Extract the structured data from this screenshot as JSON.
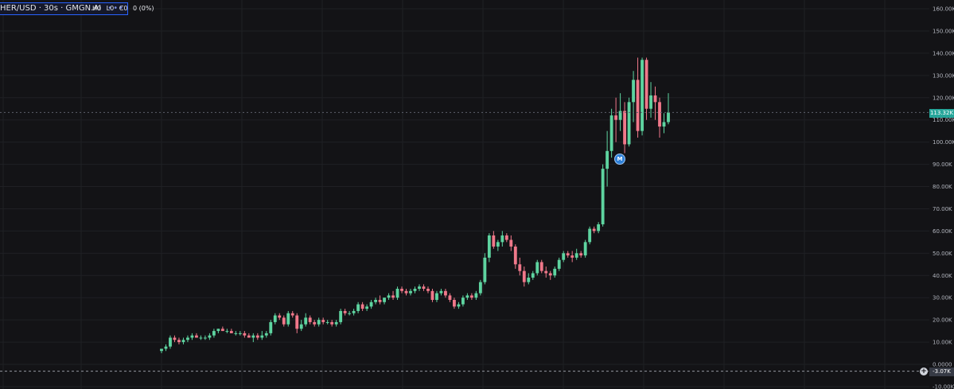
{
  "symbol": {
    "title": "HER/USD · 30s · GMGN.AI",
    "menu_icon": "more-dots-icon"
  },
  "ohlc": {
    "h": "H0",
    "l": "L0",
    "c": "C0",
    "change": "0 (0%)"
  },
  "last_price_label": "113.32K",
  "crosshair_label": "-3.07K",
  "marker_label": "M",
  "colors": {
    "up": "#5ed4a0",
    "down": "#f0788a",
    "grid": "#1f2024",
    "axis_text": "#b2b5be"
  },
  "chart_data": {
    "type": "candlestick",
    "yaxis": {
      "ticks": [
        160,
        150,
        140,
        130,
        120,
        110,
        100,
        90,
        80,
        70,
        60,
        50,
        40,
        30,
        20,
        10,
        0,
        -10
      ],
      "tick_labels": [
        "160.00K",
        "150.00K",
        "140.00K",
        "130.00K",
        "120.00K",
        "110.00K",
        "100.00K",
        "90.00K",
        "80.00K",
        "70.00K",
        "60.00K",
        "50.00K",
        "40.00K",
        "30.00K",
        "20.00K",
        "10.00K",
        "0.0000",
        "-10.00K"
      ],
      "ylim": [
        -10,
        160
      ],
      "unit": "K"
    },
    "last_price": 113.32,
    "crosshair_price": -3.07,
    "grid": true,
    "candles": [
      {
        "o": 6,
        "h": 7,
        "l": 5,
        "c": 7
      },
      {
        "o": 7,
        "h": 9,
        "l": 6,
        "c": 8
      },
      {
        "o": 8,
        "h": 13,
        "l": 7,
        "c": 12
      },
      {
        "o": 12,
        "h": 13,
        "l": 10,
        "c": 11
      },
      {
        "o": 11,
        "h": 12,
        "l": 9,
        "c": 10
      },
      {
        "o": 10,
        "h": 12,
        "l": 9,
        "c": 11
      },
      {
        "o": 11,
        "h": 13,
        "l": 10,
        "c": 12
      },
      {
        "o": 12,
        "h": 14,
        "l": 11,
        "c": 13
      },
      {
        "o": 13,
        "h": 14,
        "l": 12,
        "c": 12
      },
      {
        "o": 12,
        "h": 13,
        "l": 11,
        "c": 12
      },
      {
        "o": 12,
        "h": 13,
        "l": 11,
        "c": 12
      },
      {
        "o": 12,
        "h": 14,
        "l": 11,
        "c": 13
      },
      {
        "o": 13,
        "h": 16,
        "l": 12,
        "c": 15
      },
      {
        "o": 15,
        "h": 16,
        "l": 14,
        "c": 16
      },
      {
        "o": 16,
        "h": 17,
        "l": 15,
        "c": 15
      },
      {
        "o": 15,
        "h": 16,
        "l": 14,
        "c": 15
      },
      {
        "o": 15,
        "h": 16,
        "l": 14,
        "c": 14
      },
      {
        "o": 14,
        "h": 15,
        "l": 13,
        "c": 14
      },
      {
        "o": 14,
        "h": 15,
        "l": 13,
        "c": 14
      },
      {
        "o": 14,
        "h": 15,
        "l": 12,
        "c": 13
      },
      {
        "o": 13,
        "h": 14,
        "l": 12,
        "c": 12
      },
      {
        "o": 12,
        "h": 14,
        "l": 10,
        "c": 13
      },
      {
        "o": 13,
        "h": 14,
        "l": 11,
        "c": 12
      },
      {
        "o": 12,
        "h": 15,
        "l": 11,
        "c": 13
      },
      {
        "o": 13,
        "h": 15,
        "l": 12,
        "c": 14
      },
      {
        "o": 14,
        "h": 20,
        "l": 13,
        "c": 19
      },
      {
        "o": 19,
        "h": 23,
        "l": 18,
        "c": 22
      },
      {
        "o": 22,
        "h": 23,
        "l": 20,
        "c": 21
      },
      {
        "o": 21,
        "h": 22,
        "l": 17,
        "c": 18
      },
      {
        "o": 18,
        "h": 24,
        "l": 17,
        "c": 23
      },
      {
        "o": 23,
        "h": 24,
        "l": 21,
        "c": 22
      },
      {
        "o": 22,
        "h": 23,
        "l": 14,
        "c": 16
      },
      {
        "o": 16,
        "h": 20,
        "l": 15,
        "c": 18
      },
      {
        "o": 18,
        "h": 23,
        "l": 17,
        "c": 21
      },
      {
        "o": 21,
        "h": 22,
        "l": 18,
        "c": 19
      },
      {
        "o": 19,
        "h": 20,
        "l": 17,
        "c": 18
      },
      {
        "o": 18,
        "h": 21,
        "l": 17,
        "c": 20
      },
      {
        "o": 20,
        "h": 21,
        "l": 18,
        "c": 19
      },
      {
        "o": 19,
        "h": 20,
        "l": 18,
        "c": 19
      },
      {
        "o": 19,
        "h": 20,
        "l": 17,
        "c": 18
      },
      {
        "o": 18,
        "h": 20,
        "l": 17,
        "c": 19
      },
      {
        "o": 19,
        "h": 25,
        "l": 18,
        "c": 24
      },
      {
        "o": 24,
        "h": 25,
        "l": 22,
        "c": 23
      },
      {
        "o": 23,
        "h": 24,
        "l": 22,
        "c": 23
      },
      {
        "o": 23,
        "h": 25,
        "l": 22,
        "c": 24
      },
      {
        "o": 24,
        "h": 28,
        "l": 23,
        "c": 27
      },
      {
        "o": 27,
        "h": 28,
        "l": 24,
        "c": 25
      },
      {
        "o": 25,
        "h": 27,
        "l": 24,
        "c": 26
      },
      {
        "o": 26,
        "h": 29,
        "l": 25,
        "c": 28
      },
      {
        "o": 28,
        "h": 30,
        "l": 27,
        "c": 29
      },
      {
        "o": 29,
        "h": 31,
        "l": 27,
        "c": 28
      },
      {
        "o": 28,
        "h": 30,
        "l": 27,
        "c": 30
      },
      {
        "o": 30,
        "h": 32,
        "l": 29,
        "c": 31
      },
      {
        "o": 31,
        "h": 33,
        "l": 29,
        "c": 30
      },
      {
        "o": 30,
        "h": 35,
        "l": 29,
        "c": 34
      },
      {
        "o": 34,
        "h": 35,
        "l": 32,
        "c": 33
      },
      {
        "o": 33,
        "h": 34,
        "l": 31,
        "c": 32
      },
      {
        "o": 32,
        "h": 34,
        "l": 31,
        "c": 33
      },
      {
        "o": 33,
        "h": 35,
        "l": 32,
        "c": 34
      },
      {
        "o": 34,
        "h": 36,
        "l": 33,
        "c": 35
      },
      {
        "o": 35,
        "h": 36,
        "l": 33,
        "c": 34
      },
      {
        "o": 34,
        "h": 35,
        "l": 32,
        "c": 33
      },
      {
        "o": 33,
        "h": 34,
        "l": 28,
        "c": 29
      },
      {
        "o": 29,
        "h": 33,
        "l": 28,
        "c": 32
      },
      {
        "o": 32,
        "h": 34,
        "l": 31,
        "c": 33
      },
      {
        "o": 33,
        "h": 34,
        "l": 30,
        "c": 31
      },
      {
        "o": 31,
        "h": 32,
        "l": 28,
        "c": 29
      },
      {
        "o": 29,
        "h": 30,
        "l": 25,
        "c": 26
      },
      {
        "o": 26,
        "h": 28,
        "l": 25,
        "c": 27
      },
      {
        "o": 27,
        "h": 31,
        "l": 26,
        "c": 30
      },
      {
        "o": 30,
        "h": 32,
        "l": 29,
        "c": 31
      },
      {
        "o": 31,
        "h": 32,
        "l": 29,
        "c": 30
      },
      {
        "o": 30,
        "h": 33,
        "l": 29,
        "c": 32
      },
      {
        "o": 32,
        "h": 38,
        "l": 31,
        "c": 37
      },
      {
        "o": 37,
        "h": 50,
        "l": 36,
        "c": 48
      },
      {
        "o": 48,
        "h": 59,
        "l": 46,
        "c": 58
      },
      {
        "o": 58,
        "h": 60,
        "l": 52,
        "c": 53
      },
      {
        "o": 53,
        "h": 56,
        "l": 51,
        "c": 55
      },
      {
        "o": 55,
        "h": 60,
        "l": 53,
        "c": 58
      },
      {
        "o": 58,
        "h": 59,
        "l": 55,
        "c": 56
      },
      {
        "o": 56,
        "h": 58,
        "l": 51,
        "c": 53
      },
      {
        "o": 53,
        "h": 54,
        "l": 43,
        "c": 45
      },
      {
        "o": 45,
        "h": 48,
        "l": 40,
        "c": 42
      },
      {
        "o": 42,
        "h": 44,
        "l": 35,
        "c": 37
      },
      {
        "o": 37,
        "h": 41,
        "l": 36,
        "c": 39
      },
      {
        "o": 39,
        "h": 42,
        "l": 38,
        "c": 41
      },
      {
        "o": 41,
        "h": 47,
        "l": 40,
        "c": 46
      },
      {
        "o": 46,
        "h": 47,
        "l": 41,
        "c": 42
      },
      {
        "o": 42,
        "h": 44,
        "l": 39,
        "c": 41
      },
      {
        "o": 41,
        "h": 42,
        "l": 38,
        "c": 40
      },
      {
        "o": 40,
        "h": 44,
        "l": 39,
        "c": 43
      },
      {
        "o": 43,
        "h": 48,
        "l": 42,
        "c": 47
      },
      {
        "o": 47,
        "h": 51,
        "l": 46,
        "c": 50
      },
      {
        "o": 50,
        "h": 51,
        "l": 48,
        "c": 49
      },
      {
        "o": 49,
        "h": 51,
        "l": 46,
        "c": 48
      },
      {
        "o": 48,
        "h": 52,
        "l": 47,
        "c": 50
      },
      {
        "o": 50,
        "h": 51,
        "l": 48,
        "c": 49
      },
      {
        "o": 49,
        "h": 56,
        "l": 48,
        "c": 55
      },
      {
        "o": 55,
        "h": 62,
        "l": 54,
        "c": 61
      },
      {
        "o": 61,
        "h": 62,
        "l": 59,
        "c": 60
      },
      {
        "o": 60,
        "h": 64,
        "l": 59,
        "c": 63
      },
      {
        "o": 63,
        "h": 90,
        "l": 62,
        "c": 88
      },
      {
        "o": 88,
        "h": 105,
        "l": 80,
        "c": 96
      },
      {
        "o": 96,
        "h": 115,
        "l": 93,
        "c": 112
      },
      {
        "o": 112,
        "h": 120,
        "l": 100,
        "c": 110
      },
      {
        "o": 110,
        "h": 122,
        "l": 105,
        "c": 114
      },
      {
        "o": 114,
        "h": 118,
        "l": 95,
        "c": 99
      },
      {
        "o": 99,
        "h": 120,
        "l": 98,
        "c": 118
      },
      {
        "o": 118,
        "h": 132,
        "l": 109,
        "c": 128
      },
      {
        "o": 128,
        "h": 138,
        "l": 102,
        "c": 105
      },
      {
        "o": 105,
        "h": 138,
        "l": 103,
        "c": 137
      },
      {
        "o": 137,
        "h": 138,
        "l": 110,
        "c": 115
      },
      {
        "o": 115,
        "h": 127,
        "l": 111,
        "c": 121
      },
      {
        "o": 121,
        "h": 125,
        "l": 110,
        "c": 118
      },
      {
        "o": 118,
        "h": 120,
        "l": 102,
        "c": 107
      },
      {
        "o": 107,
        "h": 113,
        "l": 104,
        "c": 109
      },
      {
        "o": 109,
        "h": 122,
        "l": 108,
        "c": 113.32
      }
    ]
  }
}
